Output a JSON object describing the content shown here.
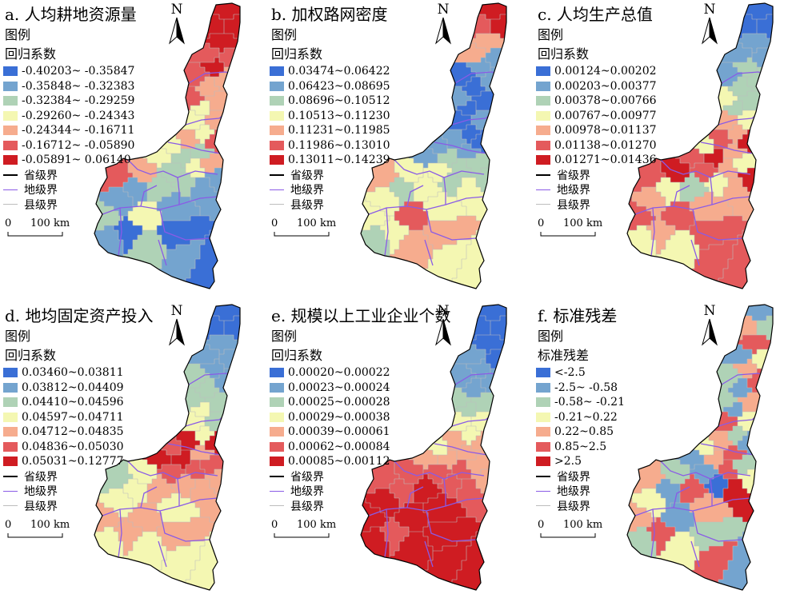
{
  "panels": [
    {
      "title": "a. 人均耕地资源量",
      "legend_title": "图例",
      "legend_subtitle": "回归系数",
      "classes": [
        {
          "label": "-0.40203~ -0.35847",
          "color": "#3a6fd6"
        },
        {
          "label": "-0.35848~ -0.32383",
          "color": "#74a4cf"
        },
        {
          "label": "-0.32384~ -0.29259",
          "color": "#afd2b6"
        },
        {
          "label": "-0.29260~ -0.24343",
          "color": "#f4f7b2"
        },
        {
          "label": "-0.24344~ -0.16711",
          "color": "#f6ac8e"
        },
        {
          "label": "-0.16712~ -0.05890",
          "color": "#e45a5c"
        },
        {
          "label": "-0.05891~ 0.06140",
          "color": "#cf1c22"
        }
      ],
      "boundaries": [
        {
          "label": "省级界",
          "color": "#000000"
        },
        {
          "label": "地级界",
          "color": "#8a5be6"
        },
        {
          "label": "县级界",
          "color": "#bdbdbd"
        }
      ],
      "north": "N",
      "scale": {
        "zero": "0",
        "label": "100 km"
      },
      "pattern": [
        6,
        6,
        6,
        6,
        5,
        5,
        6,
        5,
        4,
        4,
        5,
        4,
        3,
        4,
        3,
        3,
        4,
        5,
        3,
        2,
        3,
        2,
        4,
        3,
        2,
        1,
        2,
        1,
        5,
        4,
        2,
        1,
        1,
        2,
        1,
        0,
        3,
        2,
        1,
        0,
        1,
        0
      ]
    },
    {
      "title": "b. 加权路网密度",
      "legend_title": "图例",
      "legend_subtitle": "回归系数",
      "classes": [
        {
          "label": "0.03474~0.06422",
          "color": "#3a6fd6"
        },
        {
          "label": "0.06423~0.08695",
          "color": "#74a4cf"
        },
        {
          "label": "0.08696~0.10512",
          "color": "#afd2b6"
        },
        {
          "label": "0.10513~0.11230",
          "color": "#f4f7b2"
        },
        {
          "label": "0.11231~0.11985",
          "color": "#f6ac8e"
        },
        {
          "label": "0.11986~0.13010",
          "color": "#e45a5c"
        },
        {
          "label": "0.13011~0.14239",
          "color": "#cf1c22"
        }
      ],
      "boundaries": [
        {
          "label": "省级界",
          "color": "#000000"
        },
        {
          "label": "地级界",
          "color": "#8a5be6"
        },
        {
          "label": "县级界",
          "color": "#bdbdbd"
        }
      ],
      "north": "N",
      "scale": {
        "zero": "0",
        "label": "100 km"
      },
      "pattern": [
        6,
        5,
        6,
        4,
        4,
        1,
        1,
        0,
        1,
        0,
        1,
        0,
        0,
        1,
        0,
        0,
        1,
        0,
        1,
        1,
        1,
        2,
        2,
        2,
        3,
        2,
        2,
        3,
        4,
        3,
        3,
        2,
        3,
        3,
        2,
        3,
        5,
        4,
        3,
        4,
        3,
        3
      ]
    },
    {
      "title": "c. 人均生产总值",
      "legend_title": "图例",
      "legend_subtitle": "回归系数",
      "classes": [
        {
          "label": "0.00124~0.00202",
          "color": "#3a6fd6"
        },
        {
          "label": "0.00203~0.00377",
          "color": "#74a4cf"
        },
        {
          "label": "0.00378~0.00766",
          "color": "#afd2b6"
        },
        {
          "label": "0.00767~0.00977",
          "color": "#f4f7b2"
        },
        {
          "label": "0.00978~0.01137",
          "color": "#f6ac8e"
        },
        {
          "label": "0.01138~0.01270",
          "color": "#e45a5c"
        },
        {
          "label": "0.01271~0.01436",
          "color": "#cf1c22"
        }
      ],
      "boundaries": [
        {
          "label": "省级界",
          "color": "#000000"
        },
        {
          "label": "地级界",
          "color": "#8a5be6"
        },
        {
          "label": "县级界",
          "color": "#bdbdbd"
        }
      ],
      "north": "N",
      "scale": {
        "zero": "0",
        "label": "100 km"
      },
      "pattern": [
        0,
        0,
        0,
        1,
        1,
        1,
        2,
        1,
        2,
        2,
        3,
        2,
        2,
        3,
        4,
        4,
        5,
        6,
        3,
        4,
        5,
        6,
        3,
        4,
        5,
        6,
        3,
        4,
        5,
        6,
        2,
        3,
        4,
        5,
        3,
        4,
        5,
        3,
        4,
        5,
        5,
        5
      ]
    },
    {
      "title": "d. 地均固定资产投入",
      "legend_title": "图例",
      "legend_subtitle": "回归系数",
      "classes": [
        {
          "label": "0.03460~0.03811",
          "color": "#3a6fd6"
        },
        {
          "label": "0.03812~0.04409",
          "color": "#74a4cf"
        },
        {
          "label": "0.04410~0.04596",
          "color": "#afd2b6"
        },
        {
          "label": "0.04597~0.04711",
          "color": "#f4f7b2"
        },
        {
          "label": "0.04712~0.04835",
          "color": "#f6ac8e"
        },
        {
          "label": "0.04836~0.05030",
          "color": "#e45a5c"
        },
        {
          "label": "0.05031~0.12777",
          "color": "#cf1c22"
        }
      ],
      "boundaries": [
        {
          "label": "省级界",
          "color": "#000000"
        },
        {
          "label": "地级界",
          "color": "#8a5be6"
        },
        {
          "label": "县级界",
          "color": "#bdbdbd"
        }
      ],
      "north": "N",
      "scale": {
        "zero": "0",
        "label": "100 km"
      },
      "pattern": [
        0,
        0,
        0,
        1,
        1,
        1,
        1,
        2,
        1,
        2,
        2,
        2,
        3,
        2,
        3,
        3,
        6,
        6,
        5,
        4,
        6,
        6,
        5,
        5,
        5,
        4,
        4,
        4,
        2,
        3,
        4,
        3,
        3,
        4,
        3,
        4,
        4,
        3,
        3,
        4,
        3,
        3
      ]
    },
    {
      "title": "e. 规模以上工业企业个数",
      "legend_title": "图例",
      "legend_subtitle": "回归系数",
      "classes": [
        {
          "label": "0.00020~0.00022",
          "color": "#3a6fd6"
        },
        {
          "label": "0.00023~0.00024",
          "color": "#74a4cf"
        },
        {
          "label": "0.00025~0.00028",
          "color": "#afd2b6"
        },
        {
          "label": "0.00029~0.00038",
          "color": "#f4f7b2"
        },
        {
          "label": "0.00039~0.00061",
          "color": "#f6ac8e"
        },
        {
          "label": "0.00062~0.00084",
          "color": "#e45a5c"
        },
        {
          "label": "0.00085~0.00112",
          "color": "#cf1c22"
        }
      ],
      "boundaries": [
        {
          "label": "省级界",
          "color": "#000000"
        },
        {
          "label": "地级界",
          "color": "#8a5be6"
        },
        {
          "label": "县级界",
          "color": "#bdbdbd"
        }
      ],
      "north": "N",
      "scale": {
        "zero": "0",
        "label": "100 km"
      },
      "pattern": [
        0,
        0,
        0,
        0,
        1,
        0,
        1,
        1,
        1,
        1,
        2,
        2,
        2,
        3,
        3,
        3,
        4,
        4,
        3,
        4,
        4,
        4,
        4,
        5,
        5,
        4,
        5,
        5,
        5,
        5,
        6,
        5,
        6,
        6,
        6,
        5,
        6,
        6,
        6,
        6,
        6,
        6
      ]
    },
    {
      "title": "f. 标准残差",
      "legend_title": "图例",
      "legend_subtitle": "标准残差",
      "classes": [
        {
          "label": "<-2.5",
          "color": "#3a6fd6"
        },
        {
          "label": "-2.5~ -0.58",
          "color": "#74a4cf"
        },
        {
          "label": "-0.58~ -0.21",
          "color": "#afd2b6"
        },
        {
          "label": "-0.21~0.22",
          "color": "#f4f7b2"
        },
        {
          "label": "0.22~0.85",
          "color": "#f6ac8e"
        },
        {
          "label": "0.85~2.5",
          "color": "#e45a5c"
        },
        {
          "label": ">2.5",
          "color": "#cf1c22"
        }
      ],
      "boundaries": [
        {
          "label": "省级界",
          "color": "#000000"
        },
        {
          "label": "地级界",
          "color": "#8a5be6"
        },
        {
          "label": "县级界",
          "color": "#bdbdbd"
        }
      ],
      "north": "N",
      "scale": {
        "zero": "0",
        "label": "100 km"
      },
      "pattern": [
        1,
        4,
        2,
        5,
        1,
        3,
        4,
        2,
        5,
        1,
        2,
        4,
        1,
        3,
        5,
        2,
        4,
        1,
        3,
        5,
        1,
        4,
        2,
        5,
        1,
        3,
        0,
        6,
        4,
        2,
        5,
        1,
        3,
        4,
        2,
        5,
        1,
        3,
        4,
        2,
        5,
        1
      ]
    }
  ]
}
